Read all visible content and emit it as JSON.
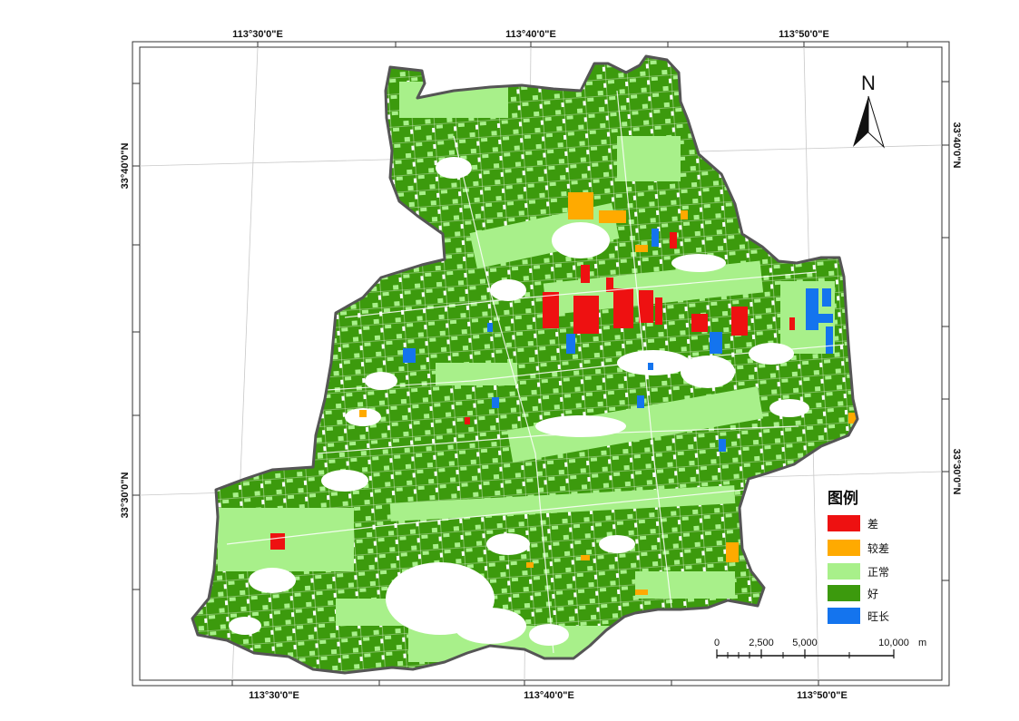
{
  "map": {
    "graticule": {
      "top_labels": [
        "113°30'0\"E",
        "113°40'0\"E",
        "113°50'0\"E"
      ],
      "bottom_labels": [
        "113°30'0\"E",
        "113°40'0\"E",
        "113°50'0\"E"
      ],
      "left_labels": [
        "33°40'0\"N",
        "33°30'0\"N"
      ],
      "right_labels": [
        "33°40'0\"N",
        "33°30'0\"N"
      ]
    },
    "north_arrow": {
      "letter": "N"
    },
    "legend": {
      "title": "图例",
      "items": [
        {
          "label": "差",
          "color": "#ee1111"
        },
        {
          "label": "较差",
          "color": "#ffaa00"
        },
        {
          "label": "正常",
          "color": "#a8f08a"
        },
        {
          "label": "好",
          "color": "#3c9a0d"
        },
        {
          "label": "旺长",
          "color": "#1474ee"
        }
      ]
    },
    "scale_bar": {
      "ticks": [
        "0",
        "2,500",
        "5,000",
        "10,000"
      ],
      "unit": "m"
    },
    "colors": {
      "boundary": "#555555",
      "frame": "#333333",
      "graticule": "#c8c8c8"
    }
  }
}
